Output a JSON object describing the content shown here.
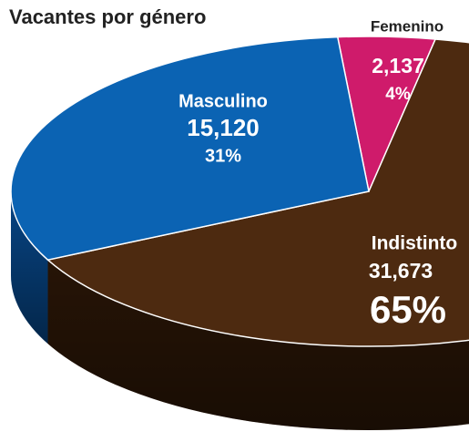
{
  "chart_data": {
    "type": "pie",
    "title": "Vacantes por género",
    "categories": [
      "Femenino",
      "Indistinto",
      "Masculino"
    ],
    "values": [
      2137,
      31673,
      15120
    ],
    "value_labels": [
      "2,137",
      "31,673",
      "15,120"
    ],
    "percentages": [
      4,
      65,
      31
    ],
    "percentage_labels": [
      "4%",
      "65%",
      "31%"
    ],
    "colors": [
      "#cf1b6b",
      "#4d2a10",
      "#0b63b3"
    ],
    "side_colors": [
      "#8a0f46",
      "#2c1707",
      "#074585"
    ]
  }
}
